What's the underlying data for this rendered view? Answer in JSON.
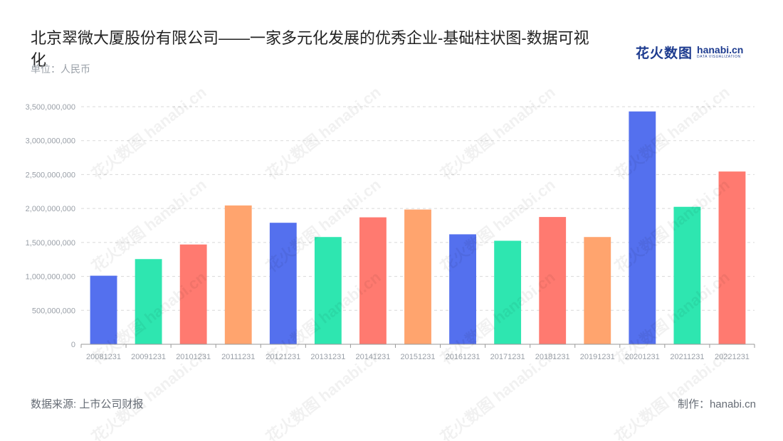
{
  "header": {
    "title": "北京翠微大厦股份有限公司——一家多元化发展的优秀企业-基础柱状图-数据可视化",
    "unit": "单位：人民币"
  },
  "logo": {
    "cn": "花火数图",
    "en": "hanabi.cn",
    "sub": "DATA VISUALIZATION"
  },
  "footer": {
    "source": "数据来源: 上市公司财报",
    "maker": "制作：hanabi.cn"
  },
  "watermark_text": "花火数图 hanabi.cn",
  "colors": {
    "palette": [
      "#5470ee",
      "#2ee6b0",
      "#ff7a70",
      "#ffa46e"
    ],
    "grid": "#d9d9d9",
    "axis": "#999999",
    "tick_label": "#9aa0a8"
  },
  "chart_data": {
    "type": "bar",
    "title": "",
    "xlabel": "",
    "ylabel": "",
    "categories": [
      "20081231",
      "20091231",
      "20101231",
      "20111231",
      "20121231",
      "20131231",
      "20141231",
      "20151231",
      "20161231",
      "20171231",
      "20181231",
      "20191231",
      "20201231",
      "20211231",
      "20221231"
    ],
    "values": [
      1010000000,
      1255000000,
      1470000000,
      2045000000,
      1790000000,
      1580000000,
      1870000000,
      1985000000,
      1620000000,
      1525000000,
      1875000000,
      1580000000,
      3430000000,
      2025000000,
      2545000000
    ],
    "bar_colors": [
      "#5470ee",
      "#2ee6b0",
      "#ff7a70",
      "#ffa46e",
      "#5470ee",
      "#2ee6b0",
      "#ff7a70",
      "#ffa46e",
      "#5470ee",
      "#2ee6b0",
      "#ff7a70",
      "#ffa46e",
      "#5470ee",
      "#2ee6b0",
      "#ff7a70"
    ],
    "ylim": [
      0,
      3500000000
    ],
    "yticks": [
      0,
      500000000,
      1000000000,
      1500000000,
      2000000000,
      2500000000,
      3000000000,
      3500000000
    ],
    "ytick_labels": [
      "0",
      "500,000,000",
      "1,000,000,000",
      "1,500,000,000",
      "2,000,000,000",
      "2,500,000,000",
      "3,000,000,000",
      "3,500,000,000"
    ],
    "grid": true,
    "legend": "none"
  }
}
